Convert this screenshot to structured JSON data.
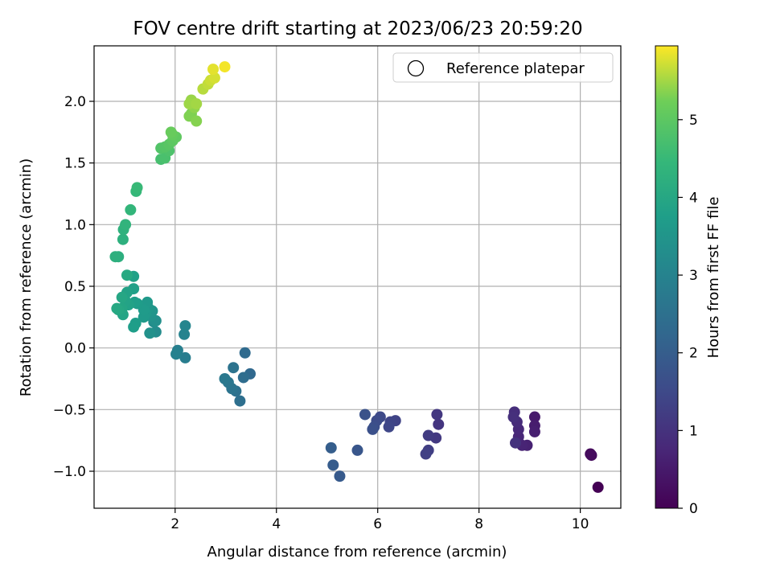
{
  "chart_data": {
    "type": "scatter",
    "title": "FOV centre drift starting at 2023/06/23 20:59:20",
    "xlabel": "Angular distance from reference (arcmin)",
    "ylabel": "Rotation from reference (arcmin)",
    "xlim": [
      0.4,
      10.8
    ],
    "ylim": [
      -1.3,
      2.45
    ],
    "xticks": [
      2,
      4,
      6,
      8,
      10
    ],
    "yticks": [
      -1.0,
      -0.5,
      0.0,
      0.5,
      1.0,
      1.5,
      2.0
    ],
    "xtick_labels": [
      "2",
      "4",
      "6",
      "8",
      "10"
    ],
    "ytick_labels": [
      "−1.0",
      "−0.5",
      "0.0",
      "0.5",
      "1.0",
      "1.5",
      "2.0"
    ],
    "grid": true,
    "legend": {
      "placement": "top-right",
      "entries": [
        "Reference platepar"
      ],
      "marker": "open-circle"
    },
    "colorbar": {
      "label": "Hours from first FF file",
      "range": [
        0,
        5.95
      ],
      "ticks": [
        0,
        1,
        2,
        3,
        4,
        5
      ],
      "tick_labels": [
        "0",
        "1",
        "2",
        "3",
        "4",
        "5"
      ],
      "colormap": "viridis"
    },
    "point_fields": [
      "x",
      "y",
      "hours"
    ],
    "points": [
      [
        10.35,
        -1.13,
        0.0
      ],
      [
        10.2,
        -0.86,
        0.15
      ],
      [
        10.22,
        -0.87,
        0.2
      ],
      [
        9.1,
        -0.56,
        0.5
      ],
      [
        9.1,
        -0.63,
        0.55
      ],
      [
        9.1,
        -0.68,
        0.6
      ],
      [
        8.95,
        -0.79,
        0.65
      ],
      [
        8.85,
        -0.79,
        0.7
      ],
      [
        8.78,
        -0.72,
        0.75
      ],
      [
        8.78,
        -0.66,
        0.8
      ],
      [
        8.75,
        -0.6,
        0.85
      ],
      [
        8.7,
        -0.52,
        0.9
      ],
      [
        8.68,
        -0.56,
        0.95
      ],
      [
        8.72,
        -0.77,
        1.0
      ],
      [
        7.2,
        -0.62,
        1.05
      ],
      [
        7.17,
        -0.54,
        1.1
      ],
      [
        7.15,
        -0.73,
        1.15
      ],
      [
        7.0,
        -0.71,
        1.2
      ],
      [
        7.0,
        -0.83,
        1.25
      ],
      [
        6.95,
        -0.86,
        1.3
      ],
      [
        6.35,
        -0.59,
        1.35
      ],
      [
        6.25,
        -0.6,
        1.4
      ],
      [
        6.22,
        -0.64,
        1.45
      ],
      [
        6.05,
        -0.56,
        1.5
      ],
      [
        5.98,
        -0.59,
        1.55
      ],
      [
        5.93,
        -0.64,
        1.6
      ],
      [
        5.9,
        -0.66,
        1.65
      ],
      [
        5.75,
        -0.54,
        1.7
      ],
      [
        5.6,
        -0.83,
        1.8
      ],
      [
        5.25,
        -1.04,
        1.9
      ],
      [
        5.12,
        -0.95,
        1.95
      ],
      [
        5.08,
        -0.81,
        2.0
      ],
      [
        3.48,
        -0.21,
        2.3
      ],
      [
        3.38,
        -0.04,
        2.35
      ],
      [
        3.35,
        -0.24,
        2.4
      ],
      [
        3.28,
        -0.43,
        2.45
      ],
      [
        3.2,
        -0.35,
        2.5
      ],
      [
        3.15,
        -0.16,
        2.55
      ],
      [
        3.12,
        -0.33,
        2.6
      ],
      [
        3.05,
        -0.28,
        2.65
      ],
      [
        2.98,
        -0.25,
        2.7
      ],
      [
        2.2,
        -0.08,
        2.85
      ],
      [
        2.05,
        -0.02,
        2.9
      ],
      [
        2.02,
        -0.05,
        2.95
      ],
      [
        2.18,
        0.11,
        3.0
      ],
      [
        2.2,
        0.18,
        3.05
      ],
      [
        1.62,
        0.13,
        3.25
      ],
      [
        1.58,
        0.21,
        3.3
      ],
      [
        1.62,
        0.22,
        3.35
      ],
      [
        1.5,
        0.12,
        3.4
      ],
      [
        1.52,
        0.26,
        3.45
      ],
      [
        1.55,
        0.3,
        3.5
      ],
      [
        1.48,
        0.32,
        3.55
      ],
      [
        1.45,
        0.37,
        3.6
      ],
      [
        1.42,
        0.28,
        3.62
      ],
      [
        1.38,
        0.25,
        3.65
      ],
      [
        1.38,
        0.31,
        3.67
      ],
      [
        1.25,
        0.36,
        3.7
      ],
      [
        1.22,
        0.2,
        3.72
      ],
      [
        1.18,
        0.17,
        3.75
      ],
      [
        1.2,
        0.37,
        3.77
      ],
      [
        1.18,
        0.48,
        3.8
      ],
      [
        1.18,
        0.58,
        3.82
      ],
      [
        1.08,
        0.35,
        3.85
      ],
      [
        1.05,
        0.45,
        3.87
      ],
      [
        1.02,
        0.38,
        3.9
      ],
      [
        0.97,
        0.27,
        3.92
      ],
      [
        0.95,
        0.32,
        3.95
      ],
      [
        0.95,
        0.41,
        3.97
      ],
      [
        0.88,
        0.31,
        4.0
      ],
      [
        0.85,
        0.32,
        4.02
      ],
      [
        1.05,
        0.59,
        4.05
      ],
      [
        0.88,
        0.74,
        4.2
      ],
      [
        0.82,
        0.74,
        4.22
      ],
      [
        0.97,
        0.88,
        4.25
      ],
      [
        0.98,
        0.96,
        4.3
      ],
      [
        1.02,
        1.0,
        4.35
      ],
      [
        1.12,
        1.12,
        4.4
      ],
      [
        1.23,
        1.27,
        4.45
      ],
      [
        1.25,
        1.3,
        4.5
      ],
      [
        1.72,
        1.53,
        4.7
      ],
      [
        1.8,
        1.54,
        4.75
      ],
      [
        1.88,
        1.6,
        4.8
      ],
      [
        1.72,
        1.62,
        4.85
      ],
      [
        1.8,
        1.63,
        4.9
      ],
      [
        1.88,
        1.65,
        4.95
      ],
      [
        1.95,
        1.68,
        5.0
      ],
      [
        2.02,
        1.71,
        5.05
      ],
      [
        1.95,
        1.73,
        5.1
      ],
      [
        1.92,
        1.75,
        5.15
      ],
      [
        2.32,
        1.9,
        5.3
      ],
      [
        2.28,
        1.88,
        5.32
      ],
      [
        2.42,
        1.84,
        5.35
      ],
      [
        2.38,
        1.95,
        5.4
      ],
      [
        2.32,
        2.01,
        5.45
      ],
      [
        2.28,
        1.98,
        5.47
      ],
      [
        2.42,
        1.98,
        5.5
      ],
      [
        2.55,
        2.1,
        5.6
      ],
      [
        2.65,
        2.14,
        5.65
      ],
      [
        2.7,
        2.17,
        5.7
      ],
      [
        2.78,
        2.19,
        5.75
      ],
      [
        2.75,
        2.26,
        5.82
      ],
      [
        2.98,
        2.28,
        5.9
      ]
    ]
  }
}
